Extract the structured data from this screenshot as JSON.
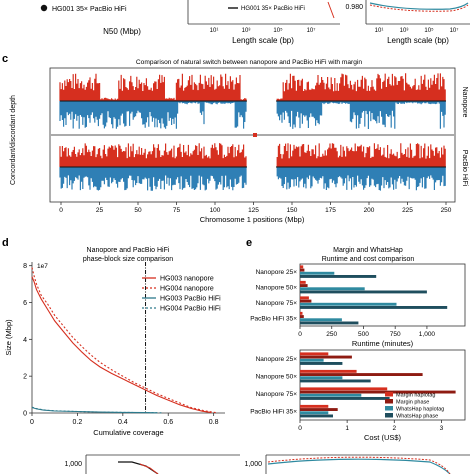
{
  "figure": {
    "top_strip": {
      "legend_left": "HG001 35× PacBio HiFi",
      "xlabel_left": "N50 (Mbp)",
      "legend_mid": "HG001 35× PacBio HiFi",
      "xlabel_mid": "Length scale (bp)",
      "xlabel_right": "Length scale (bp)",
      "ytick_right": "0.980",
      "xticks_mid": [
        "10¹",
        "10³",
        "10⁵",
        "10⁷"
      ],
      "xticks_right": [
        "10¹",
        "10³",
        "10⁵",
        "10⁷"
      ]
    },
    "panel_c": {
      "letter": "c",
      "title": "Comparison of natural switch between nanopore and PacBio HiFi with margin",
      "ylabel": "Concordant/discordant depth",
      "xlabel": "Chromosome 1 positions (Mbp)",
      "track_labels": [
        "Nanopore",
        "PacBio HiFi"
      ],
      "xticks": [
        "0",
        "25",
        "50",
        "75",
        "100",
        "125",
        "150",
        "175",
        "200",
        "225",
        "250"
      ]
    },
    "panel_d": {
      "letter": "d"
    },
    "panel_e": {
      "letter": "e"
    },
    "bottom_strip": {
      "ytick_left": "1,000",
      "ytick_right": "1,000"
    }
  },
  "chart_data": [
    {
      "type": "line",
      "title": "Nanopore and PacBio HiFi phase-block size comparison",
      "xlabel": "Cumulative coverage",
      "ylabel": "Size (Mbp)",
      "y_multiplier_label": "1e7",
      "xlim": [
        0,
        0.85
      ],
      "ylim": [
        0,
        8.2
      ],
      "xticks": [
        0,
        0.2,
        0.4,
        0.6,
        0.8
      ],
      "yticks": [
        0,
        2,
        4,
        6,
        8
      ],
      "vline_x": 0.5,
      "series": [
        {
          "name": "HG003 nanopore",
          "color": "#d62f1f",
          "dash": "",
          "x": [
            0.0,
            0.01,
            0.02,
            0.04,
            0.07,
            0.1,
            0.14,
            0.18,
            0.22,
            0.26,
            0.3,
            0.35,
            0.4,
            0.45,
            0.5,
            0.55,
            0.6,
            0.65,
            0.7,
            0.75,
            0.79
          ],
          "y": [
            7.4,
            7.1,
            6.7,
            6.2,
            5.6,
            5.0,
            4.4,
            3.8,
            3.3,
            2.85,
            2.5,
            2.15,
            1.85,
            1.55,
            1.25,
            0.95,
            0.7,
            0.45,
            0.25,
            0.1,
            0.02
          ]
        },
        {
          "name": "HG004 nanopore",
          "color": "#d62f1f",
          "dash": "2,2",
          "x": [
            0.0,
            0.01,
            0.02,
            0.04,
            0.07,
            0.1,
            0.14,
            0.18,
            0.22,
            0.26,
            0.3,
            0.35,
            0.4,
            0.45,
            0.5,
            0.55,
            0.6,
            0.65,
            0.7,
            0.76,
            0.81
          ],
          "y": [
            7.9,
            7.4,
            7.0,
            6.4,
            5.9,
            5.3,
            4.7,
            4.1,
            3.6,
            3.15,
            2.75,
            2.35,
            2.0,
            1.65,
            1.35,
            1.05,
            0.8,
            0.55,
            0.3,
            0.12,
            0.02
          ]
        },
        {
          "name": "HG003 PacBio HiFi",
          "color": "#2d7a8c",
          "dash": "",
          "x": [
            0.0,
            0.02,
            0.05,
            0.1,
            0.2,
            0.3,
            0.4,
            0.5,
            0.55
          ],
          "y": [
            0.3,
            0.22,
            0.16,
            0.11,
            0.08,
            0.05,
            0.03,
            0.02,
            0.01
          ]
        },
        {
          "name": "HG004 PacBio HiFi",
          "color": "#2d7a8c",
          "dash": "2,2",
          "x": [
            0.0,
            0.02,
            0.05,
            0.1,
            0.2,
            0.3,
            0.4,
            0.5,
            0.57
          ],
          "y": [
            0.32,
            0.24,
            0.17,
            0.12,
            0.08,
            0.05,
            0.03,
            0.02,
            0.01
          ]
        }
      ]
    },
    {
      "type": "bar",
      "orientation": "horizontal",
      "title": "Margin and WhatsHap Runtime and cost comparison",
      "title_lines": [
        "Margin and WhatsHap",
        "Runtime and cost comparison"
      ],
      "xlabel": "Runtime (minutes)",
      "categories": [
        "Nanopore 25×",
        "Nanopore 50×",
        "Nanopore 75×",
        "PacBio HiFi 35×"
      ],
      "xlim": [
        0,
        1300
      ],
      "xticks": [
        0,
        250,
        500,
        750,
        1000
      ],
      "series": [
        {
          "name": "Margin haplotag",
          "color": "#d62f1f",
          "values": [
            25,
            45,
            70,
            20
          ]
        },
        {
          "name": "Margin phase",
          "color": "#8e1b12",
          "values": [
            35,
            60,
            90,
            30
          ]
        },
        {
          "name": "WhatsHap haplotag",
          "color": "#2f8aa0",
          "values": [
            270,
            510,
            760,
            330
          ]
        },
        {
          "name": "WhatsHap phase",
          "color": "#1f4e5e",
          "values": [
            600,
            1000,
            1160,
            460
          ]
        }
      ]
    },
    {
      "type": "bar",
      "orientation": "horizontal",
      "xlabel": "Cost (US$)",
      "categories": [
        "Nanopore 25×",
        "Nanopore 50×",
        "Nanopore 75×",
        "PacBio HiFi 35×"
      ],
      "xlim": [
        0,
        3.5
      ],
      "xticks": [
        0,
        1,
        2,
        3
      ],
      "legend_position": "lower-right",
      "series": [
        {
          "name": "Margin haplotag",
          "color": "#d62f1f",
          "values": [
            0.6,
            1.2,
            1.85,
            0.6
          ]
        },
        {
          "name": "Margin phase",
          "color": "#8e1b12",
          "values": [
            1.1,
            2.6,
            3.3,
            0.8
          ]
        },
        {
          "name": "WhatsHap haplotag",
          "color": "#2f8aa0",
          "values": [
            0.5,
            0.9,
            1.3,
            0.6
          ]
        },
        {
          "name": "WhatsHap phase",
          "color": "#1f4e5e",
          "values": [
            0.9,
            1.5,
            1.9,
            0.7
          ]
        }
      ]
    }
  ]
}
